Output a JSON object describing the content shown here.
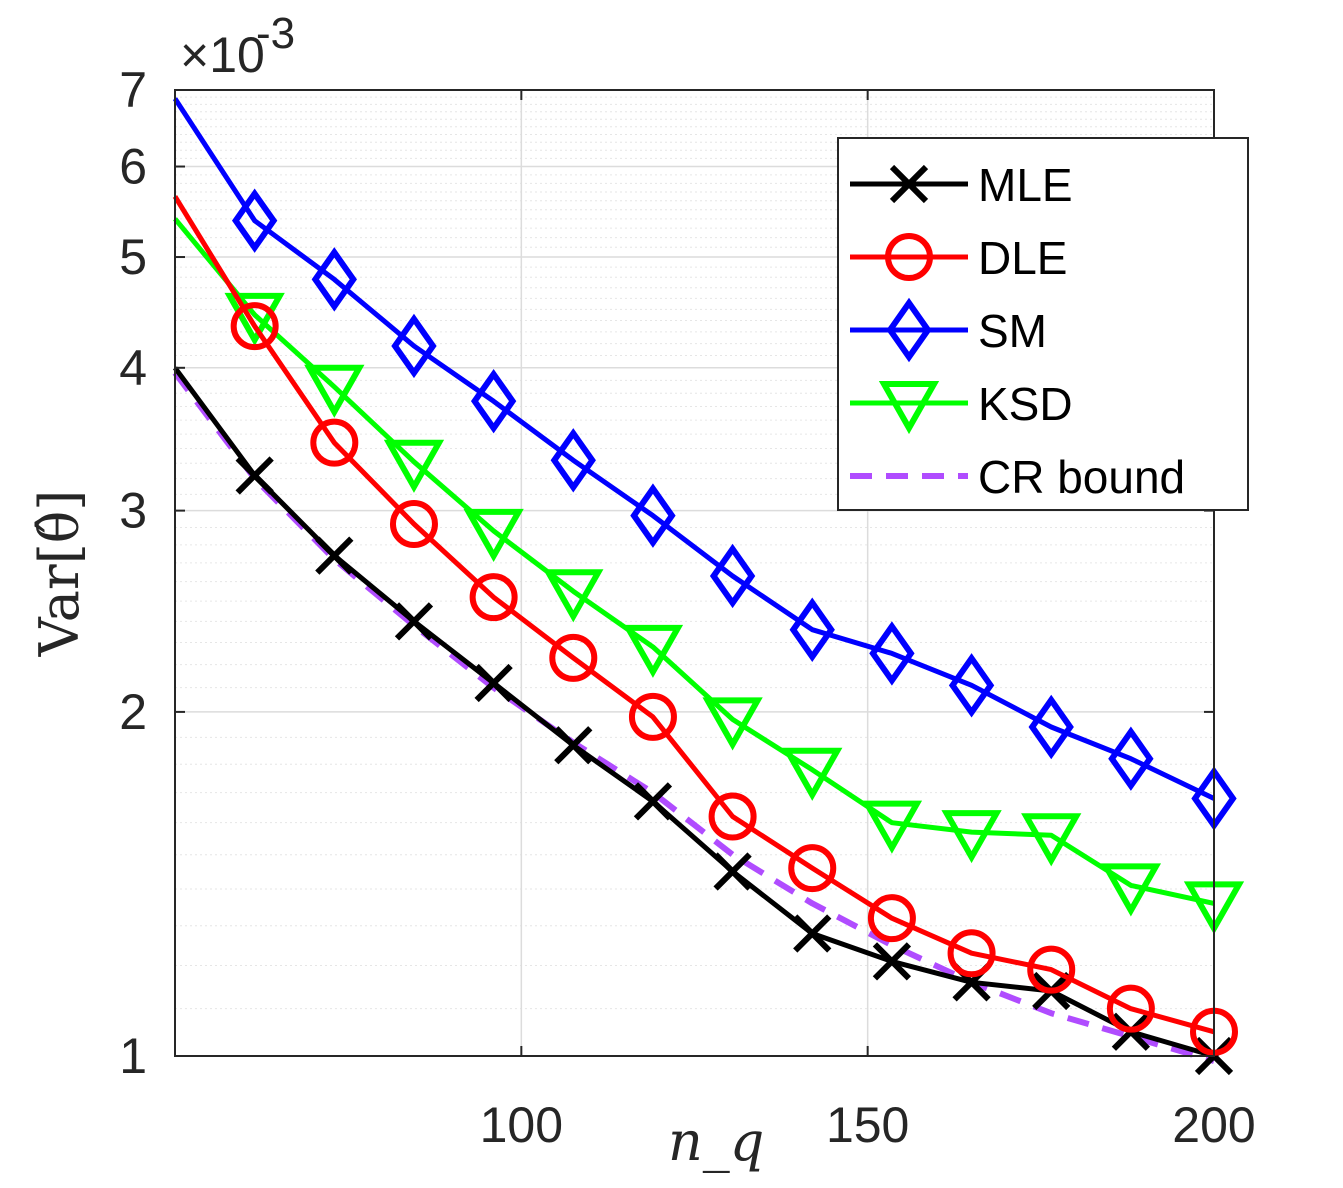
{
  "chart_data": {
    "type": "line",
    "title": "",
    "xlabel": "n_q",
    "ylabel": "Var[θ̂]",
    "yscale": "log",
    "ymultiplier_label": "×10",
    "ymultiplier_exponent": "-3",
    "xlim": [
      50,
      200
    ],
    "ylim": [
      1,
      7
    ],
    "grid": true,
    "legend_position": "top-right",
    "x_ticks": [
      {
        "value": 100,
        "label": "100"
      },
      {
        "value": 150,
        "label": "150"
      },
      {
        "value": 200,
        "label": "200"
      }
    ],
    "y_ticks": [
      {
        "value": 1,
        "label": "1"
      },
      {
        "value": 2,
        "label": "2"
      },
      {
        "value": 3,
        "label": "3"
      },
      {
        "value": 4,
        "label": "4"
      },
      {
        "value": 5,
        "label": "5"
      },
      {
        "value": 6,
        "label": "6"
      },
      {
        "value": 7,
        "label": "7"
      }
    ],
    "x": [
      50,
      61.5,
      73,
      84.5,
      96,
      107.5,
      119,
      130.5,
      142,
      153.5,
      165,
      176.5,
      188,
      200
    ],
    "series": [
      {
        "name": "MLE",
        "color": "#000000",
        "marker": "x",
        "dashed": false,
        "values": [
          4.0,
          3.22,
          2.74,
          2.4,
          2.12,
          1.87,
          1.67,
          1.45,
          1.28,
          1.21,
          1.16,
          1.14,
          1.05,
          1.0
        ]
      },
      {
        "name": "DLE",
        "color": "#ff0000",
        "marker": "circle",
        "dashed": false,
        "values": [
          5.65,
          4.35,
          3.44,
          2.92,
          2.52,
          2.23,
          1.98,
          1.62,
          1.46,
          1.32,
          1.23,
          1.19,
          1.1,
          1.05
        ]
      },
      {
        "name": "SM",
        "color": "#0000ff",
        "marker": "diamond",
        "dashed": false,
        "values": [
          6.88,
          5.38,
          4.78,
          4.18,
          3.74,
          3.32,
          2.97,
          2.63,
          2.36,
          2.25,
          2.11,
          1.94,
          1.82,
          1.68
        ]
      },
      {
        "name": "KSD",
        "color": "#00ff00",
        "marker": "triangle-down",
        "dashed": false,
        "values": [
          5.4,
          4.45,
          3.85,
          3.31,
          2.88,
          2.55,
          2.28,
          1.97,
          1.78,
          1.6,
          1.57,
          1.56,
          1.41,
          1.36
        ]
      },
      {
        "name": "CR bound",
        "color": "#b04cff",
        "marker": "none",
        "dashed": true,
        "values": [
          3.96,
          3.2,
          2.72,
          2.38,
          2.1,
          1.88,
          1.7,
          1.5,
          1.36,
          1.25,
          1.16,
          1.09,
          1.04,
          0.99
        ]
      }
    ]
  }
}
